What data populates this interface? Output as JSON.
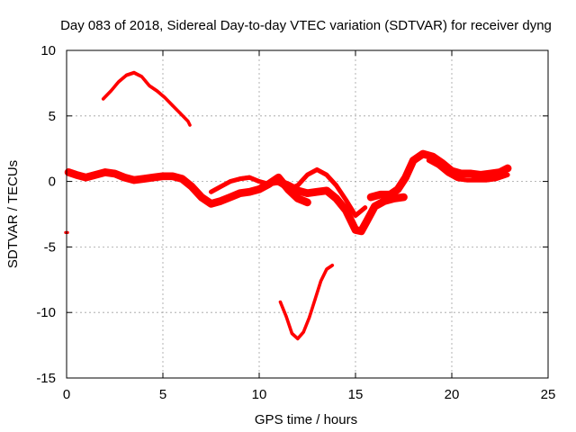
{
  "chart_data": {
    "type": "scatter",
    "title": "Day 083 of 2018, Sidereal Day-to-day VTEC variation (SDTVAR) for receiver dyng",
    "xlabel": "GPS time / hours",
    "ylabel": "SDTVAR / TECUs",
    "xlim": [
      0,
      25
    ],
    "ylim": [
      -15,
      10
    ],
    "xticks": [
      0,
      5,
      10,
      15,
      20,
      25
    ],
    "yticks": [
      -15,
      -10,
      -5,
      0,
      5,
      10
    ],
    "xtick_labels": [
      "0",
      "5",
      "10",
      "15",
      "20",
      "25"
    ],
    "ytick_labels": [
      "-15",
      "-10",
      "-5",
      "0",
      "5",
      "10"
    ],
    "grid": true,
    "series_color": "#ff0000",
    "series": [
      {
        "name": "arc-upper-left",
        "band": 0.25,
        "x": [
          1.9,
          2.3,
          2.7,
          3.1,
          3.5,
          3.9,
          4.3,
          4.7,
          5.1,
          5.5,
          5.9,
          6.3,
          6.4
        ],
        "y": [
          6.3,
          6.9,
          7.6,
          8.1,
          8.3,
          8.0,
          7.3,
          6.9,
          6.4,
          5.8,
          5.2,
          4.6,
          4.3
        ]
      },
      {
        "name": "arc-low",
        "band": 0.25,
        "x": [
          11.1,
          11.4,
          11.7,
          12.0,
          12.3,
          12.6,
          12.9,
          13.2,
          13.5,
          13.8
        ],
        "y": [
          -9.2,
          -10.3,
          -11.6,
          -12.0,
          -11.5,
          -10.4,
          -9.0,
          -7.6,
          -6.7,
          -6.4
        ]
      },
      {
        "name": "arc-main-left",
        "band": 0.6,
        "x": [
          0.1,
          0.5,
          1.0,
          1.5,
          2.0,
          2.5,
          3.0,
          3.5,
          4.0,
          4.5,
          5.0,
          5.5,
          6.0,
          6.5,
          7.0,
          7.5,
          8.0,
          8.5,
          9.0,
          9.5,
          10.0,
          10.5,
          11.0,
          11.5,
          12.0,
          12.5
        ],
        "y": [
          0.7,
          0.5,
          0.3,
          0.5,
          0.7,
          0.6,
          0.3,
          0.1,
          0.2,
          0.3,
          0.4,
          0.4,
          0.2,
          -0.4,
          -1.2,
          -1.7,
          -1.5,
          -1.2,
          -0.9,
          -0.8,
          -0.6,
          -0.2,
          0.3,
          -0.6,
          -1.3,
          -1.6
        ]
      },
      {
        "name": "arc-wave-upper",
        "band": 0.35,
        "x": [
          7.5,
          8.0,
          8.5,
          9.0,
          9.5,
          10.0,
          10.5,
          11.0,
          11.5,
          12.0,
          12.5,
          13.0,
          13.5,
          14.0,
          14.5,
          15.0,
          15.5
        ],
        "y": [
          -0.8,
          -0.4,
          0.0,
          0.2,
          0.3,
          0.0,
          -0.2,
          -0.1,
          -0.6,
          -0.3,
          0.5,
          0.9,
          0.5,
          -0.3,
          -1.4,
          -2.6,
          -2.0
        ]
      },
      {
        "name": "arc-dip",
        "band": 0.6,
        "x": [
          11.0,
          11.5,
          12.0,
          12.5,
          13.0,
          13.5,
          14.0,
          14.5,
          15.0,
          15.3,
          15.6,
          16.0,
          16.5,
          17.0,
          17.5
        ],
        "y": [
          0.0,
          -0.3,
          -0.7,
          -0.9,
          -0.8,
          -0.7,
          -1.3,
          -2.2,
          -3.7,
          -3.8,
          -3.0,
          -1.9,
          -1.5,
          -1.3,
          -1.2
        ]
      },
      {
        "name": "arc-right",
        "band": 0.6,
        "x": [
          15.8,
          16.3,
          16.8,
          17.2,
          17.6,
          18.0,
          18.5,
          19.0,
          19.5,
          20.0,
          20.5,
          21.0,
          21.5,
          22.0,
          22.5,
          22.9
        ],
        "y": [
          -1.2,
          -1.0,
          -1.0,
          -0.6,
          0.3,
          1.6,
          2.1,
          1.9,
          1.4,
          0.8,
          0.6,
          0.6,
          0.5,
          0.6,
          0.7,
          1.0
        ]
      },
      {
        "name": "arc-right-lower",
        "band": 0.35,
        "x": [
          18.8,
          19.3,
          19.8,
          20.3,
          20.8,
          21.3,
          21.8,
          22.3,
          22.9
        ],
        "y": [
          1.6,
          1.2,
          0.6,
          0.2,
          0.1,
          0.1,
          0.1,
          0.2,
          0.5
        ]
      },
      {
        "name": "stub-left-edge",
        "band": 0.08,
        "x": [
          -0.05,
          0.05
        ],
        "y": [
          -3.9,
          -3.9
        ]
      }
    ]
  }
}
